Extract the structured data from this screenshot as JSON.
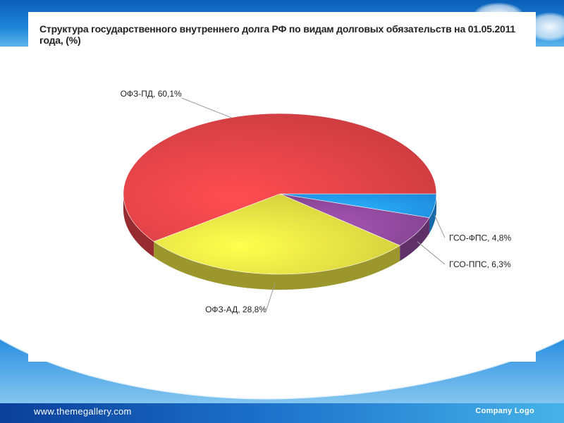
{
  "footer": {
    "url": "www.themegallery.com",
    "logo": "Company Logo"
  },
  "colors": {
    "ofz_pd": "#c0393d",
    "ofz_ad": "#c8c23a",
    "gso_pps": "#7b3f86",
    "gso_fps": "#1e86d6"
  },
  "chart_data": {
    "type": "pie",
    "title": "Структура государственного внутреннего долга РФ по видам долговых обязательств на 01.05.2011 года, (%)",
    "slices": [
      {
        "label": "ГСО-ФПС, 4,8%",
        "value": 4.8,
        "color": "#1e86d6"
      },
      {
        "label": "ГСО-ППС, 6,3%",
        "value": 6.3,
        "color": "#7b3f86"
      },
      {
        "label": "ОФЗ-АД, 28,8%",
        "value": 28.8,
        "color": "#c8c23a"
      },
      {
        "label": "ОФЗ-ПД, 60,1%",
        "value": 60.1,
        "color": "#c0393d"
      }
    ],
    "style": "3d-tilted",
    "legend": "none"
  }
}
